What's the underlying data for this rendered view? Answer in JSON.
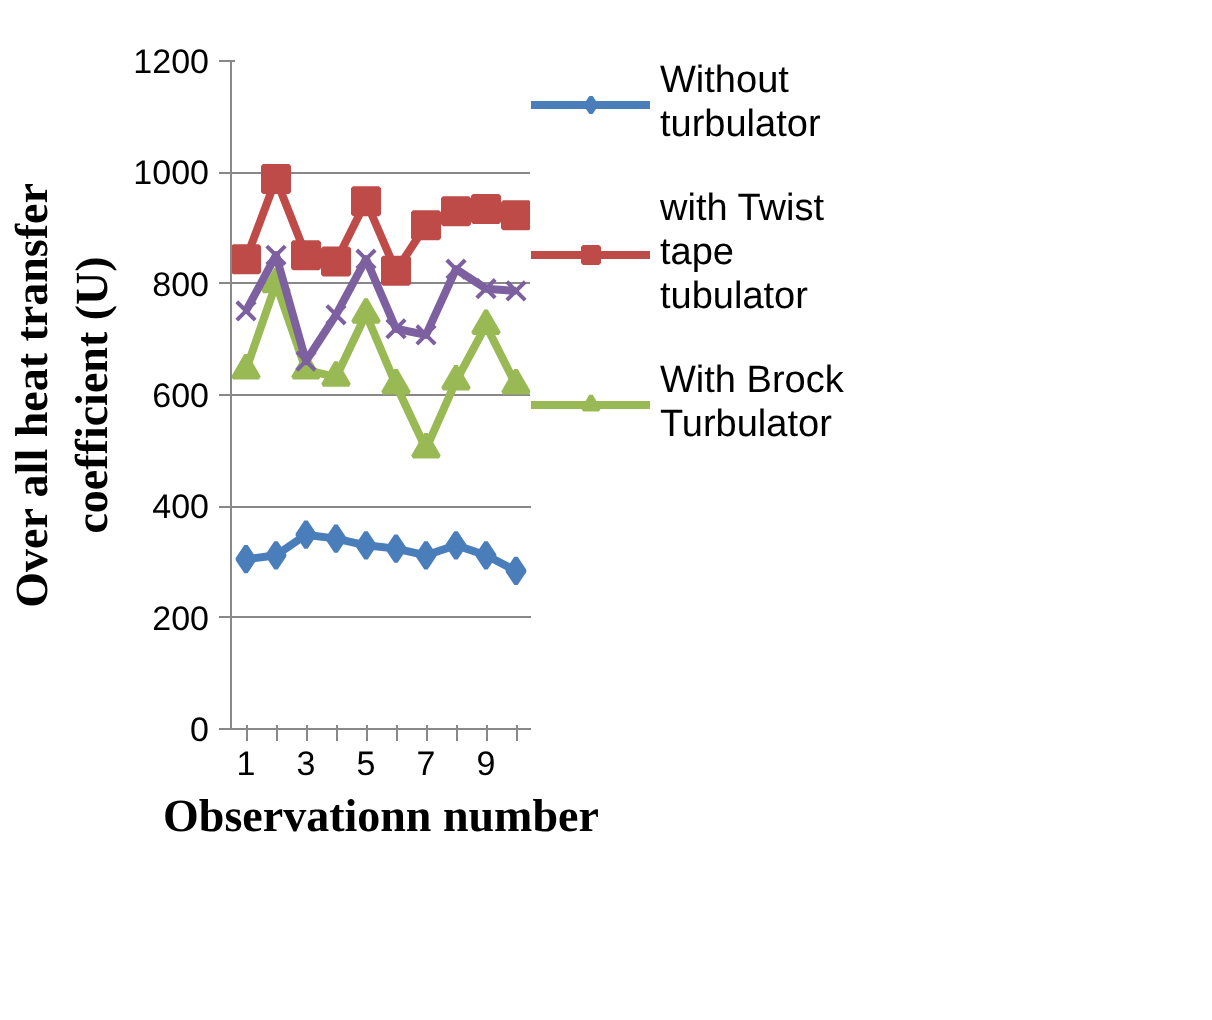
{
  "chart_data": {
    "type": "line",
    "xlabel": "Observationn number",
    "ylabel": "Over all heat transfer coefficient (U)",
    "categories": [
      "1",
      null,
      "3",
      null,
      "5",
      null,
      "7",
      null,
      "9",
      null
    ],
    "ylim": [
      0,
      1200
    ],
    "yticks": [
      0,
      200,
      400,
      600,
      800,
      1000,
      1200
    ],
    "grid": "y",
    "legend": "right",
    "series": [
      {
        "name": "Without turbulator",
        "color": "#4a7ebb",
        "marker": "diamond",
        "values": [
          305,
          312,
          349,
          342,
          330,
          324,
          312,
          330,
          312,
          284
        ]
      },
      {
        "name": "with Twist tape tubulator",
        "color": "#be4b48",
        "marker": "square",
        "values": [
          844,
          988,
          851,
          840,
          948,
          823,
          905,
          930,
          934,
          923
        ]
      },
      {
        "name": "With Brock Turbulator",
        "color": "#98b954",
        "marker": "triangle",
        "values": [
          645,
          800,
          645,
          632,
          745,
          618,
          503,
          625,
          725,
          618
        ]
      },
      {
        "color": "#7d60a0",
        "marker": "cross",
        "values": [
          751,
          851,
          661,
          744,
          844,
          719,
          708,
          826,
          791,
          787
        ]
      }
    ]
  }
}
